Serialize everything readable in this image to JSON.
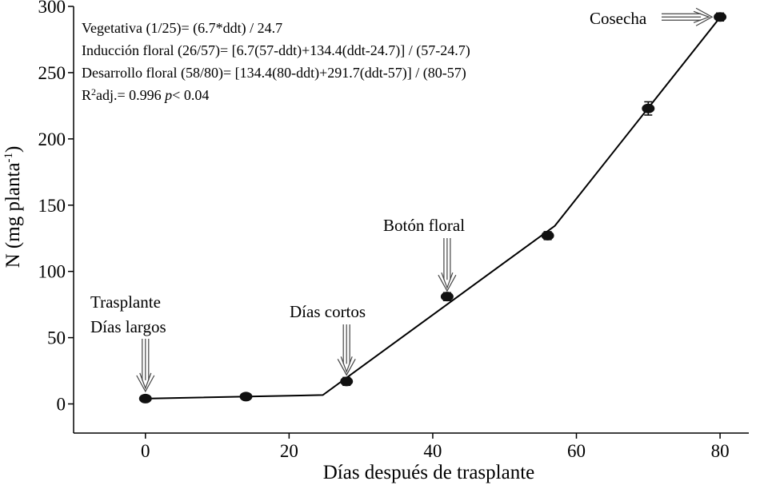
{
  "chart_data": {
    "type": "line",
    "xlabel": "Días después de trasplante",
    "ylabel_main": "N (mg planta",
    "ylabel_sup": "-1",
    "ylabel_close": ")",
    "xlim": [
      -10,
      84
    ],
    "ylim": [
      -22,
      300
    ],
    "xticks": [
      0,
      20,
      40,
      60,
      80
    ],
    "yticks": [
      0,
      50,
      100,
      150,
      200,
      250,
      300
    ],
    "grid": false,
    "legend": "none",
    "series": [
      {
        "observed": {
          "x": [
            0,
            14,
            28,
            42,
            56,
            70,
            80
          ],
          "y": [
            4,
            5.5,
            17,
            81,
            127,
            223,
            292
          ],
          "err": [
            2,
            2,
            3,
            3,
            3,
            5,
            3
          ]
        },
        "fitted": {
          "x": [
            0,
            24.7,
            57,
            80
          ],
          "y": [
            4,
            6.7,
            134.4,
            291.7
          ]
        }
      }
    ],
    "equations": {
      "line1": "Vegetativa (1/25)= (6.7*ddt) / 24.7",
      "line2": "Inducción floral (26/57)= [6.7(57-ddt)+134.4(ddt-24.7)] / (57-24.7)",
      "line3": "Desarrollo floral (58/80)= [134.4(80-ddt)+291.7(ddt-57)] / (80-57)",
      "r2_prefix": "R",
      "r2_sup": "2",
      "r2_mid": "adj.= 0.996 ",
      "r2_p": "p",
      "r2_end": "< 0.04"
    },
    "annotations": {
      "trasplante": "Trasplante",
      "dias_largos": "Días largos",
      "dias_cortos": "Días cortos",
      "boton_floral": "Botón floral",
      "cosecha": "Cosecha"
    }
  }
}
